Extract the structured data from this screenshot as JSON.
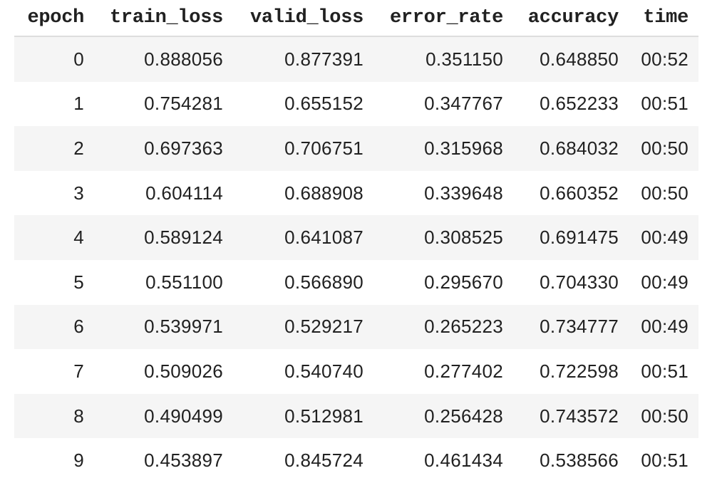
{
  "table": {
    "columns": [
      "epoch",
      "train_loss",
      "valid_loss",
      "error_rate",
      "accuracy",
      "time"
    ],
    "rows": [
      [
        "0",
        "0.888056",
        "0.877391",
        "0.351150",
        "0.648850",
        "00:52"
      ],
      [
        "1",
        "0.754281",
        "0.655152",
        "0.347767",
        "0.652233",
        "00:51"
      ],
      [
        "2",
        "0.697363",
        "0.706751",
        "0.315968",
        "0.684032",
        "00:50"
      ],
      [
        "3",
        "0.604114",
        "0.688908",
        "0.339648",
        "0.660352",
        "00:50"
      ],
      [
        "4",
        "0.589124",
        "0.641087",
        "0.308525",
        "0.691475",
        "00:49"
      ],
      [
        "5",
        "0.551100",
        "0.566890",
        "0.295670",
        "0.704330",
        "00:49"
      ],
      [
        "6",
        "0.539971",
        "0.529217",
        "0.265223",
        "0.734777",
        "00:49"
      ],
      [
        "7",
        "0.509026",
        "0.540740",
        "0.277402",
        "0.722598",
        "00:51"
      ],
      [
        "8",
        "0.490499",
        "0.512981",
        "0.256428",
        "0.743572",
        "00:50"
      ],
      [
        "9",
        "0.453897",
        "0.845724",
        "0.461434",
        "0.538566",
        "00:51"
      ]
    ]
  },
  "colors": {
    "stripe": "#f5f5f5",
    "header_border": "#dddddd",
    "text": "#212121"
  }
}
